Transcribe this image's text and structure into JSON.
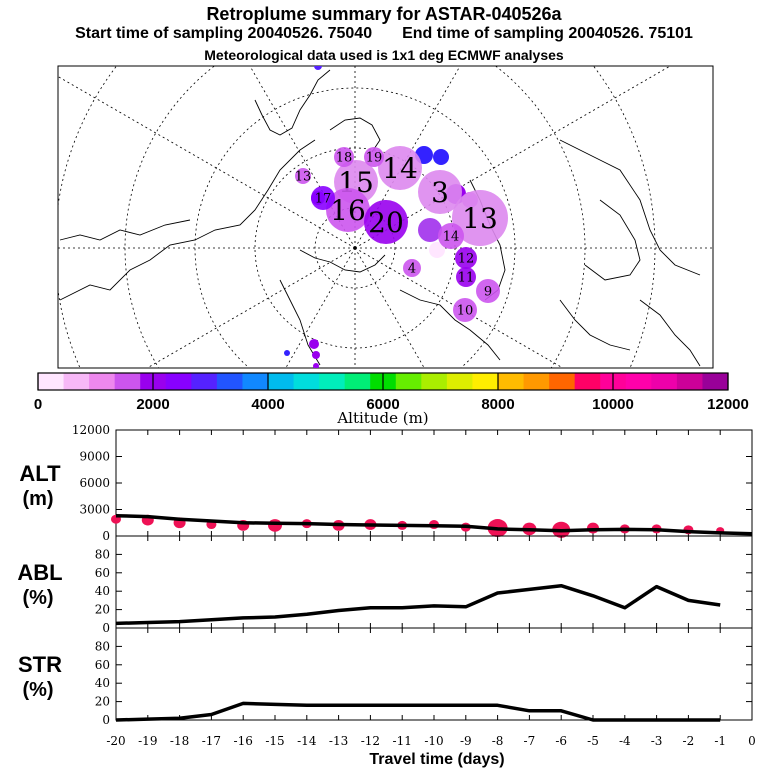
{
  "header": {
    "title": "Retroplume summary for ASTAR-040526a",
    "start_sampling": "Start time of sampling 20040526. 75040",
    "end_sampling": "End time of sampling 20040526. 75101",
    "met_data": "Meteorological data used is 1x1 deg ECMWF analyses"
  },
  "colorbar": {
    "label": "Altitude (m)",
    "tick_labels": [
      "0",
      "2000",
      "4000",
      "6000",
      "8000",
      "10000",
      "12000"
    ],
    "colors": [
      "#ffe6ff",
      "#f7b8f7",
      "#ee88ee",
      "#cc55ee",
      "#9900ee",
      "#8800ff",
      "#5522ff",
      "#2255ff",
      "#1188ff",
      "#00bbee",
      "#00dddd",
      "#00eebb",
      "#00ee77",
      "#00dd00",
      "#66ee00",
      "#aaee00",
      "#ddee00",
      "#ffee00",
      "#ffbb00",
      "#ff9900",
      "#ff6600",
      "#ff0066",
      "#ff0099",
      "#ff00aa",
      "#ee00aa",
      "#cc0099",
      "#990099"
    ]
  },
  "map": {
    "plume_markers": [
      {
        "label": "15",
        "size": "large",
        "color": "#dd88ee"
      },
      {
        "label": "14",
        "size": "large",
        "color": "#dd88ee"
      },
      {
        "label": "13",
        "size": "large",
        "color": "#dd88ee"
      },
      {
        "label": "16",
        "size": "large",
        "color": "#cc55ee"
      },
      {
        "label": "20",
        "size": "large",
        "color": "#9900ee"
      },
      {
        "label": "18",
        "size": "small",
        "color": "#cc55ee"
      },
      {
        "label": "19",
        "size": "small",
        "color": "#cc55ee"
      },
      {
        "label": "17",
        "size": "small",
        "color": "#8800ff"
      },
      {
        "label": "14",
        "size": "small",
        "color": "#cc55ee"
      },
      {
        "label": "12",
        "size": "small",
        "color": "#9900ee"
      },
      {
        "label": "11",
        "size": "small",
        "color": "#9900ee"
      },
      {
        "label": "10",
        "size": "small",
        "color": "#cc55ee"
      },
      {
        "label": "9",
        "size": "small",
        "color": "#cc55ee"
      },
      {
        "label": "4",
        "size": "small",
        "color": "#cc55ee"
      },
      {
        "label": "3",
        "size": "large",
        "color": "#dd88ee"
      },
      {
        "label": "13",
        "size": "small",
        "color": "#cc55ee"
      }
    ]
  },
  "chart_data": [
    {
      "type": "line",
      "title": "ALT",
      "ylabel": "ALT (m)",
      "label_main": "ALT",
      "label_unit": "(m)",
      "x": [
        -20,
        -19,
        -18,
        -17,
        -16,
        -15,
        -14,
        -13,
        -12,
        -11,
        -10,
        -9,
        -8,
        -7,
        -6,
        -5,
        -4,
        -3,
        -2,
        -1,
        0
      ],
      "values": [
        2300,
        2200,
        1900,
        1700,
        1500,
        1450,
        1400,
        1300,
        1250,
        1200,
        1150,
        1100,
        800,
        700,
        600,
        700,
        750,
        700,
        500,
        350,
        250
      ],
      "scatter_values": [
        1900,
        1800,
        1500,
        1300,
        1200,
        1200,
        1400,
        1200,
        1300,
        1200,
        1300,
        1000,
        900,
        800,
        700,
        900,
        800,
        800,
        700,
        600
      ],
      "ylim": [
        0,
        12000
      ],
      "yticks": [
        "0",
        "3000",
        "6000",
        "9000",
        "12000"
      ],
      "xlabel": "Travel time (days)",
      "xticks": [
        "-20",
        "-19",
        "-18",
        "-17",
        "-16",
        "-15",
        "-14",
        "-13",
        "-12",
        "-11",
        "-10",
        "-9",
        "-8",
        "-7",
        "-6",
        "-5",
        "-4",
        "-3",
        "-2",
        "-1",
        "0"
      ]
    },
    {
      "type": "line",
      "title": "ABL",
      "ylabel": "ABL (%)",
      "label_main": "ABL",
      "label_unit": "(%)",
      "x": [
        -20,
        -19,
        -18,
        -17,
        -16,
        -15,
        -14,
        -13,
        -12,
        -11,
        -10,
        -9,
        -8,
        -7,
        -6,
        -5,
        -4,
        -3,
        -2,
        -1
      ],
      "values": [
        5,
        6,
        7,
        9,
        11,
        12,
        15,
        19,
        22,
        22,
        24,
        23,
        38,
        42,
        46,
        35,
        22,
        45,
        30,
        25
      ],
      "ylim": [
        0,
        100
      ],
      "yticks": [
        "0",
        "20",
        "40",
        "60",
        "80"
      ]
    },
    {
      "type": "line",
      "title": "STR",
      "ylabel": "STR (%)",
      "label_main": "STR",
      "label_unit": "(%)",
      "x": [
        -20,
        -19,
        -18,
        -17,
        -16,
        -15,
        -14,
        -13,
        -12,
        -11,
        -10,
        -9,
        -8,
        -7,
        -6,
        -5,
        -4,
        -3,
        -2,
        -1
      ],
      "values": [
        0,
        1,
        2,
        6,
        18,
        17,
        16,
        16,
        16,
        16,
        16,
        16,
        16,
        10,
        10,
        0,
        0,
        0,
        0,
        0
      ],
      "ylim": [
        0,
        100
      ],
      "yticks": [
        "0",
        "20",
        "40",
        "60",
        "80"
      ],
      "xlabel": "Travel time (days)"
    }
  ]
}
